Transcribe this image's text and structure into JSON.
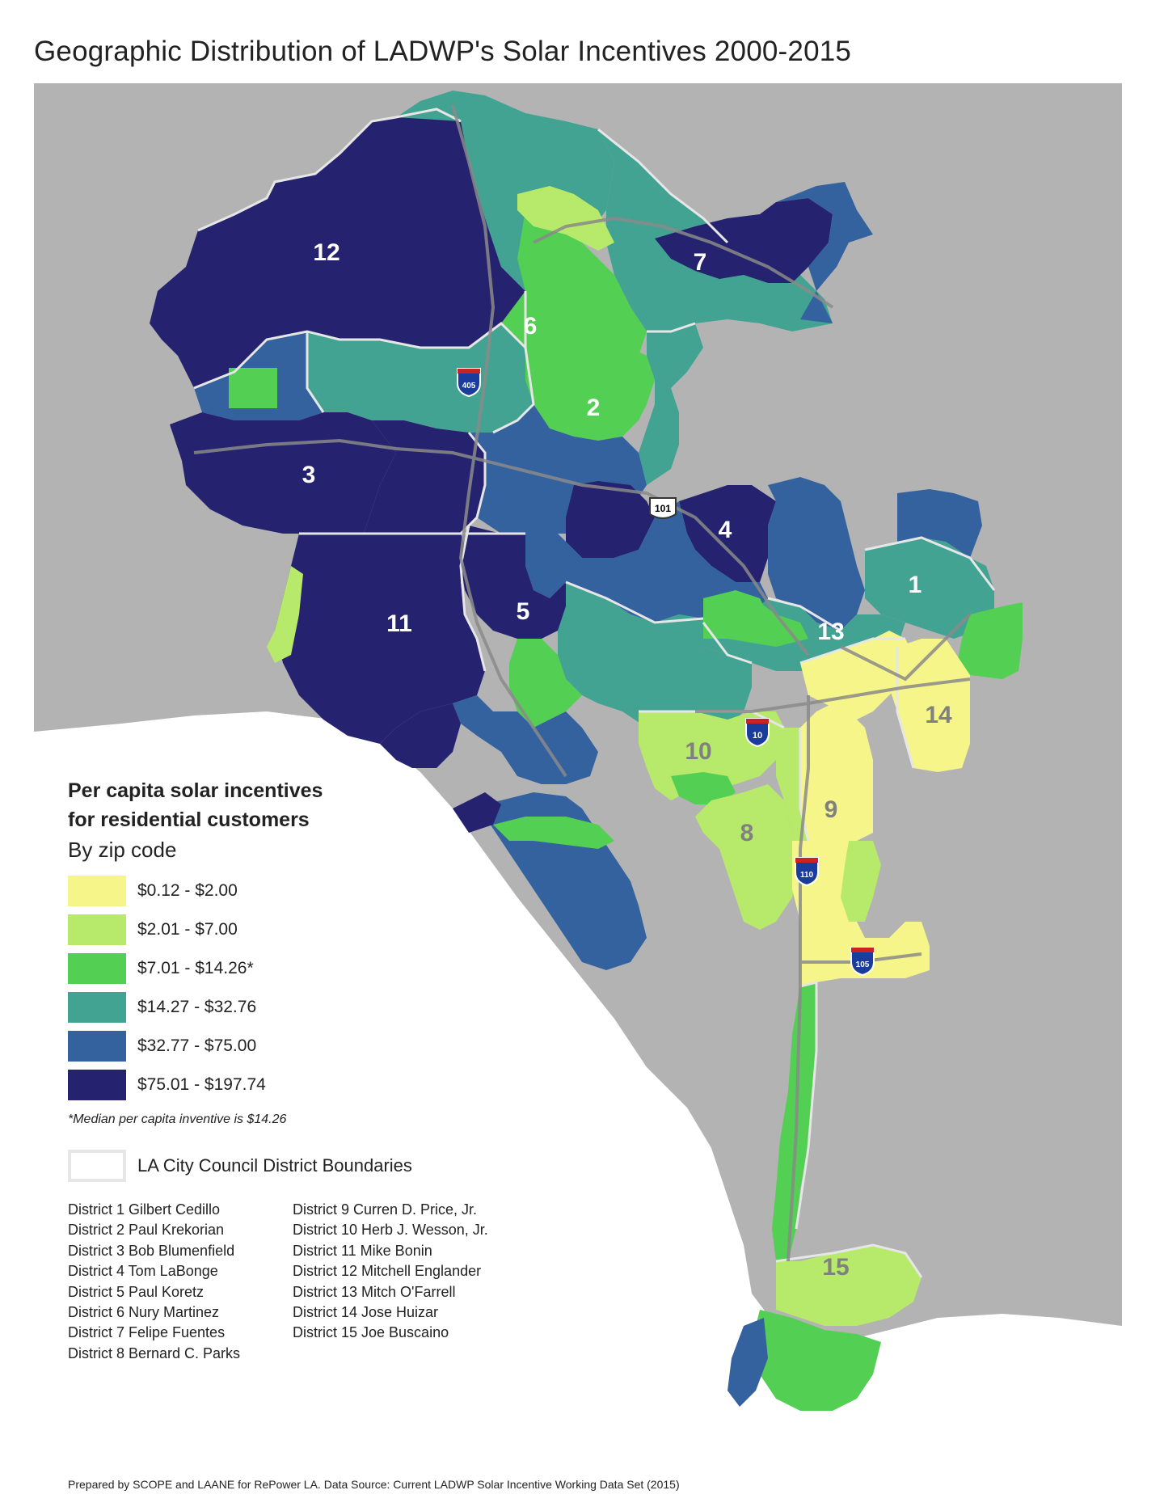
{
  "title": "Geographic Distribution of LADWP's Solar Incentives 2000-2015",
  "colors": {
    "background_land": "#b3b3b3",
    "ocean": "#ffffff",
    "boundary": "#e6e6e6",
    "bin1": "#f6f58a",
    "bin2": "#b7ea6a",
    "bin3": "#53cf53",
    "bin4": "#43a393",
    "bin5": "#33629f",
    "bin6": "#25226f",
    "freeway": "#8a8a8a"
  },
  "map_labels": {
    "district_numbers": [
      "12",
      "7",
      "6",
      "2",
      "3",
      "4",
      "1",
      "11",
      "5",
      "13",
      "14",
      "10",
      "9",
      "8",
      "15"
    ],
    "shields": [
      "405",
      "101",
      "10",
      "110",
      "105"
    ]
  },
  "legend": {
    "heading_line1": "Per capita solar incentives",
    "heading_line2": "for residential customers",
    "subheading": "By zip code",
    "bins": [
      {
        "label": "$0.12 - $2.00",
        "color": "#f6f58a"
      },
      {
        "label": "$2.01 - $7.00",
        "color": "#b7ea6a"
      },
      {
        "label": "$7.01 - $14.26*",
        "color": "#53cf53"
      },
      {
        "label": "$14.27 - $32.76",
        "color": "#43a393"
      },
      {
        "label": "$32.77 - $75.00",
        "color": "#33629f"
      },
      {
        "label": "$75.01 - $197.74",
        "color": "#25226f"
      }
    ],
    "note": "*Median per capita inventive is $14.26",
    "boundary_label": "LA City Council District Boundaries"
  },
  "districts_col1": [
    "District 1  Gilbert Cedillo",
    "District 2  Paul Krekorian",
    "District 3  Bob Blumenfield",
    "District 4  Tom LaBonge",
    "District 5  Paul Koretz",
    "District 6  Nury Martinez",
    "District 7  Felipe Fuentes",
    "District 8  Bernard C. Parks"
  ],
  "districts_col2": [
    "District 9  Curren D. Price, Jr.",
    "District 10  Herb J. Wesson, Jr.",
    "District 11  Mike Bonin",
    "District 12  Mitchell Englander",
    "District 13  Mitch O'Farrell",
    "District 14  Jose Huizar",
    "District 15  Joe Buscaino"
  ],
  "footer": "Prepared by SCOPE and LAANE for RePower LA. Data Source: Current LADWP Solar Incentive Working Data Set (2015)"
}
